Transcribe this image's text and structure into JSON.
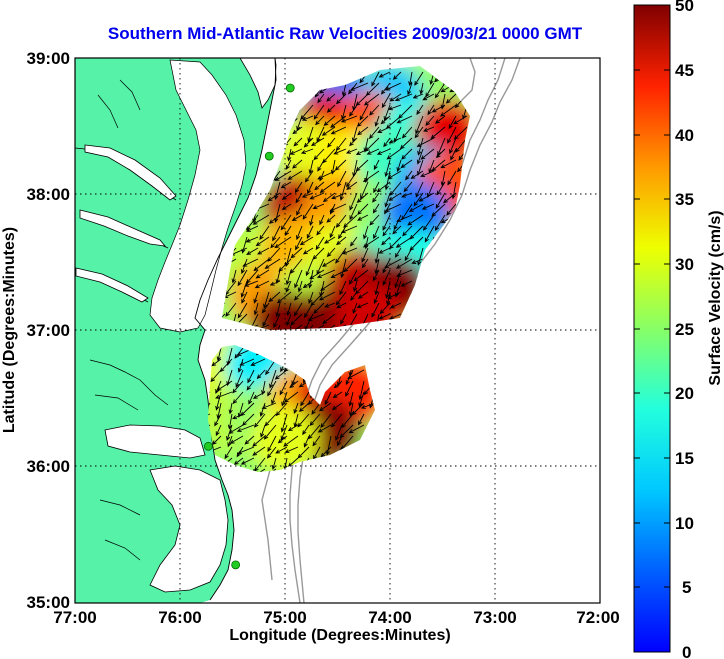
{
  "title": "Southern Mid-Atlantic Raw Velocities 2009/03/21 0000 GMT",
  "x_axis": {
    "label": "Longitude (Degrees:Minutes)",
    "ticks": [
      "77:00",
      "76:00",
      "75:00",
      "74:00",
      "73:00",
      "72:00"
    ]
  },
  "y_axis": {
    "label": "Latitude (Degrees:Minutes)",
    "ticks": [
      "39:00",
      "38:00",
      "37:00",
      "36:00",
      "35:00"
    ]
  },
  "colorbar": {
    "label": "Surface Velocity (cm/s)",
    "ticks": [
      "50",
      "45",
      "40",
      "35",
      "30",
      "25",
      "20",
      "15",
      "10",
      "5",
      "0"
    ],
    "colormap": "jet",
    "range": [
      0,
      50
    ]
  },
  "colors": {
    "land": "#55f2a8",
    "ocean": "#ffffff",
    "bathymetry": "#999999",
    "grid": "#000000",
    "title": "#0000ee",
    "station_marker": "#22cc22"
  },
  "map": {
    "lon_range": [
      -77,
      -72
    ],
    "lat_range": [
      35,
      39
    ],
    "grid": "dotted",
    "stations": [
      {
        "lon": -74.95,
        "lat": 38.78
      },
      {
        "lon": -75.15,
        "lat": 38.28
      },
      {
        "lon": -75.73,
        "lat": 36.15
      },
      {
        "lon": -75.47,
        "lat": 35.28
      }
    ]
  },
  "chart_data": {
    "type": "heatmap",
    "title": "Southern Mid-Atlantic Raw Velocities 2009/03/21 0000 GMT",
    "xlabel": "Longitude (Degrees:Minutes)",
    "ylabel": "Latitude (Degrees:Minutes)",
    "xlim": [
      -77,
      -72
    ],
    "ylim": [
      35,
      39
    ],
    "colorbar": {
      "label": "Surface Velocity (cm/s)",
      "min": 0,
      "max": 50
    },
    "regions": [
      {
        "name_hint": "north-field",
        "speed_patches": [
          {
            "lon": -74.9,
            "lat": 38.55,
            "speed": 22
          },
          {
            "lon": -74.5,
            "lat": 38.7,
            "speed": 12
          },
          {
            "lon": -74.0,
            "lat": 38.7,
            "speed": 16
          },
          {
            "lon": -74.6,
            "lat": 38.5,
            "speed": 45
          },
          {
            "lon": -74.2,
            "lat": 38.5,
            "speed": 40
          },
          {
            "lon": -73.8,
            "lat": 38.45,
            "speed": 20
          },
          {
            "lon": -73.45,
            "lat": 38.45,
            "speed": 45
          },
          {
            "lon": -75.1,
            "lat": 38.2,
            "speed": 18
          },
          {
            "lon": -74.8,
            "lat": 38.3,
            "speed": 30
          },
          {
            "lon": -74.4,
            "lat": 38.25,
            "speed": 32
          },
          {
            "lon": -74.0,
            "lat": 38.25,
            "speed": 22
          },
          {
            "lon": -73.65,
            "lat": 38.1,
            "speed": 15
          },
          {
            "lon": -73.45,
            "lat": 38.05,
            "speed": 40
          },
          {
            "lon": -75.2,
            "lat": 37.9,
            "speed": 25
          },
          {
            "lon": -74.9,
            "lat": 37.9,
            "speed": 47
          },
          {
            "lon": -74.5,
            "lat": 37.9,
            "speed": 36
          },
          {
            "lon": -74.1,
            "lat": 37.85,
            "speed": 26
          },
          {
            "lon": -73.75,
            "lat": 37.85,
            "speed": 12
          },
          {
            "lon": -75.3,
            "lat": 37.55,
            "speed": 28
          },
          {
            "lon": -74.9,
            "lat": 37.6,
            "speed": 35
          },
          {
            "lon": -74.5,
            "lat": 37.55,
            "speed": 30
          },
          {
            "lon": -74.1,
            "lat": 37.5,
            "speed": 22
          },
          {
            "lon": -73.8,
            "lat": 37.5,
            "speed": 20
          },
          {
            "lon": -75.2,
            "lat": 37.25,
            "speed": 36
          },
          {
            "lon": -74.8,
            "lat": 37.25,
            "speed": 28
          },
          {
            "lon": -74.3,
            "lat": 37.35,
            "speed": 47
          },
          {
            "lon": -73.95,
            "lat": 37.3,
            "speed": 50
          },
          {
            "lon": -75.0,
            "lat": 37.05,
            "speed": 50
          },
          {
            "lon": -74.6,
            "lat": 37.05,
            "speed": 50
          },
          {
            "lon": -74.2,
            "lat": 37.1,
            "speed": 46
          }
        ]
      },
      {
        "name_hint": "south-field",
        "speed_patches": [
          {
            "lon": -75.6,
            "lat": 36.7,
            "speed": 30
          },
          {
            "lon": -75.25,
            "lat": 36.75,
            "speed": 18
          },
          {
            "lon": -75.55,
            "lat": 36.35,
            "speed": 28
          },
          {
            "lon": -75.2,
            "lat": 36.35,
            "speed": 26
          },
          {
            "lon": -74.85,
            "lat": 36.5,
            "speed": 35
          },
          {
            "lon": -74.6,
            "lat": 36.5,
            "speed": 45
          },
          {
            "lon": -74.35,
            "lat": 36.55,
            "speed": 42
          },
          {
            "lon": -74.6,
            "lat": 36.25,
            "speed": 50
          },
          {
            "lon": -75.0,
            "lat": 36.2,
            "speed": 30
          }
        ]
      }
    ]
  }
}
